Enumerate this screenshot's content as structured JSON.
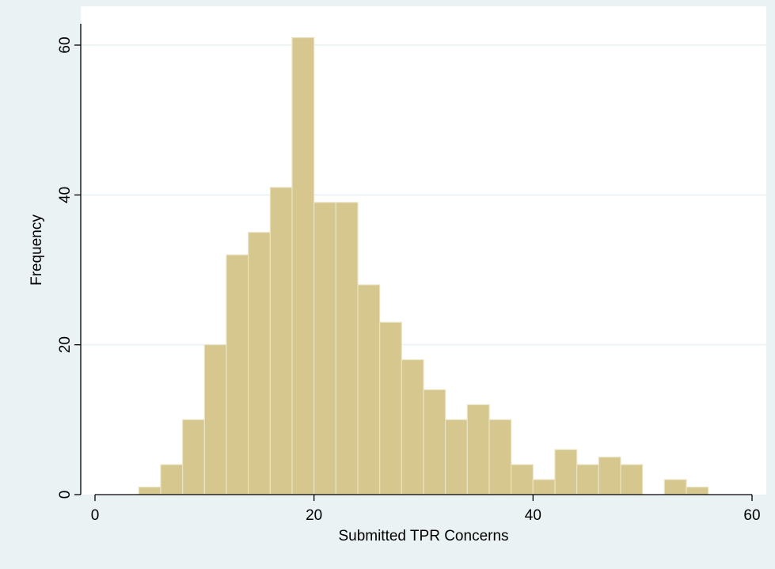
{
  "chart_data": {
    "type": "bar",
    "title": "",
    "xlabel": "Submitted TPR Concerns",
    "ylabel": "Frequency",
    "xlim": [
      0,
      60
    ],
    "ylim": [
      0,
      62
    ],
    "x_ticks": [
      0,
      20,
      40,
      60
    ],
    "y_ticks": [
      0,
      20,
      40,
      60
    ],
    "grid": true,
    "bin_width": 2,
    "bins": [
      {
        "x0": 4,
        "x1": 6,
        "count": 1
      },
      {
        "x0": 6,
        "x1": 8,
        "count": 4
      },
      {
        "x0": 8,
        "x1": 10,
        "count": 10
      },
      {
        "x0": 10,
        "x1": 12,
        "count": 20
      },
      {
        "x0": 12,
        "x1": 14,
        "count": 32
      },
      {
        "x0": 14,
        "x1": 16,
        "count": 35
      },
      {
        "x0": 16,
        "x1": 18,
        "count": 41
      },
      {
        "x0": 18,
        "x1": 20,
        "count": 61
      },
      {
        "x0": 20,
        "x1": 22,
        "count": 39
      },
      {
        "x0": 22,
        "x1": 24,
        "count": 39
      },
      {
        "x0": 24,
        "x1": 26,
        "count": 28
      },
      {
        "x0": 26,
        "x1": 28,
        "count": 23
      },
      {
        "x0": 28,
        "x1": 30,
        "count": 18
      },
      {
        "x0": 30,
        "x1": 32,
        "count": 14
      },
      {
        "x0": 32,
        "x1": 34,
        "count": 10
      },
      {
        "x0": 34,
        "x1": 36,
        "count": 12
      },
      {
        "x0": 36,
        "x1": 38,
        "count": 10
      },
      {
        "x0": 38,
        "x1": 40,
        "count": 4
      },
      {
        "x0": 40,
        "x1": 42,
        "count": 2
      },
      {
        "x0": 42,
        "x1": 44,
        "count": 6
      },
      {
        "x0": 44,
        "x1": 46,
        "count": 4
      },
      {
        "x0": 46,
        "x1": 48,
        "count": 5
      },
      {
        "x0": 48,
        "x1": 50,
        "count": 4
      },
      {
        "x0": 52,
        "x1": 54,
        "count": 2
      },
      {
        "x0": 54,
        "x1": 56,
        "count": 1
      }
    ],
    "colors": {
      "background": "#eaf2f3",
      "plot_background": "#ffffff",
      "bar_fill": "#d5c78e",
      "bar_stroke": "#eae3c4",
      "grid": "#e9f0f1",
      "axis": "#000000"
    }
  }
}
